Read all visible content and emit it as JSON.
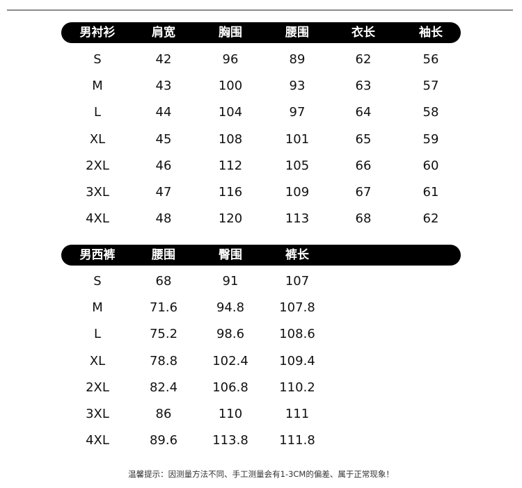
{
  "shirt_table": {
    "headers": [
      "男衬衫",
      "肩宽",
      "胸围",
      "腰围",
      "衣长",
      "袖长"
    ],
    "rows": [
      [
        "S",
        "42",
        "96",
        "89",
        "62",
        "56"
      ],
      [
        "M",
        "43",
        "100",
        "93",
        "63",
        "57"
      ],
      [
        "L",
        "44",
        "104",
        "97",
        "64",
        "58"
      ],
      [
        "XL",
        "45",
        "108",
        "101",
        "65",
        "59"
      ],
      [
        "2XL",
        "46",
        "112",
        "105",
        "66",
        "60"
      ],
      [
        "3XL",
        "47",
        "116",
        "109",
        "67",
        "61"
      ],
      [
        "4XL",
        "48",
        "120",
        "113",
        "68",
        "62"
      ]
    ]
  },
  "pants_table": {
    "headers": [
      "男西裤",
      "腰围",
      "臀围",
      "裤长"
    ],
    "rows": [
      [
        "S",
        "68",
        "91",
        "107"
      ],
      [
        "M",
        "71.6",
        "94.8",
        "107.8"
      ],
      [
        "L",
        "75.2",
        "98.6",
        "108.6"
      ],
      [
        "XL",
        "78.8",
        "102.4",
        "109.4"
      ],
      [
        "2XL",
        "82.4",
        "106.8",
        "110.2"
      ],
      [
        "3XL",
        "86",
        "110",
        "111"
      ],
      [
        "4XL",
        "89.6",
        "113.8",
        "111.8"
      ]
    ]
  },
  "note": "温馨提示：因测量方法不同、手工测量会有1-3CM的偏差、属于正常现象！"
}
